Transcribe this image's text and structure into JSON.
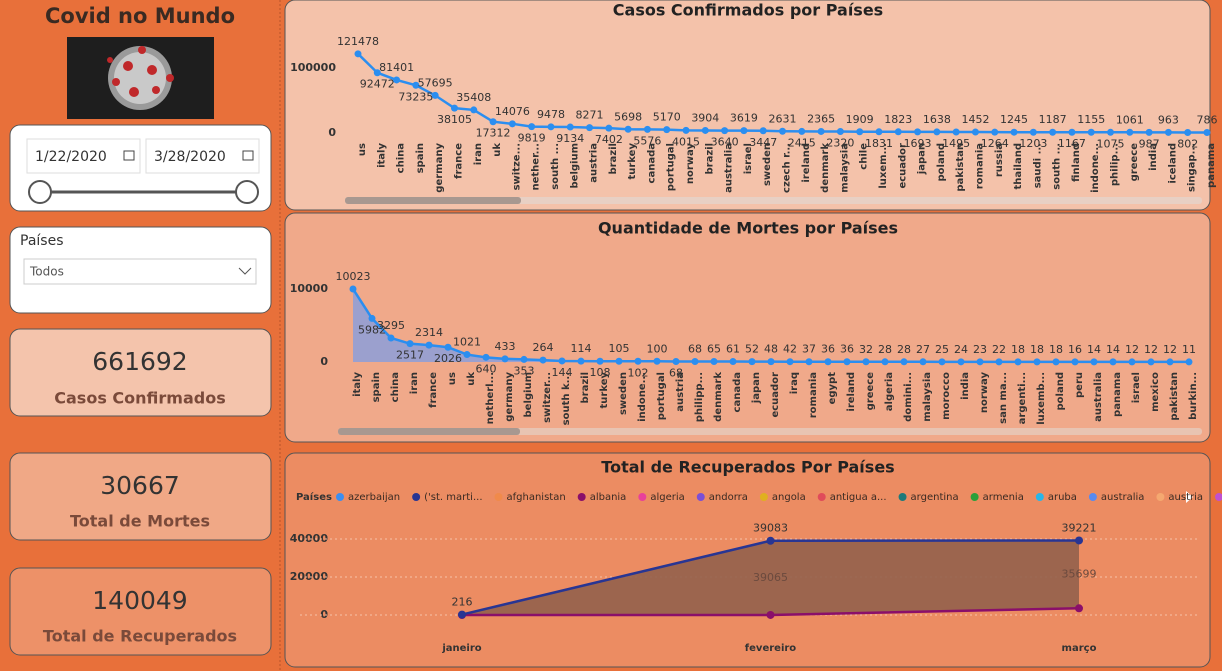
{
  "header": {
    "title": "Covid no Mundo"
  },
  "date_slicer": {
    "start": "1/22/2020",
    "end": "3/28/2020"
  },
  "filter": {
    "label": "Países",
    "selected": "Todos"
  },
  "kpis": [
    {
      "value": 661692,
      "label": "Casos Confirmados"
    },
    {
      "value": 30667,
      "label": "Total de Mortes"
    },
    {
      "value": 140049,
      "label": "Total de Recuperados"
    }
  ],
  "chart_data": [
    {
      "type": "line",
      "title": "Casos Confirmados por Países",
      "categories": [
        "us",
        "italy",
        "china",
        "spain",
        "germany",
        "france",
        "iran",
        "uk",
        "switze...",
        "nether...",
        "south ...",
        "belgium",
        "austria",
        "brazil",
        "turkey",
        "canada",
        "portugal",
        "norway",
        "brazil",
        "australia",
        "israel",
        "sweden",
        "czech r...",
        "ireland",
        "denmark",
        "malaysia",
        "chile",
        "luxem...",
        "ecuador",
        "japan",
        "poland",
        "pakistan",
        "romania",
        "russia",
        "thailand",
        "saudi ...",
        "south ...",
        "finland",
        "indone...",
        "philip...",
        "greece",
        "india",
        "iceland",
        "singap...",
        "panama"
      ],
      "values": [
        121478,
        92472,
        81401,
        73235,
        57695,
        38105,
        35408,
        17312,
        14076,
        9819,
        9478,
        9134,
        8271,
        7402,
        5698,
        5576,
        5170,
        4015,
        3904,
        3640,
        3619,
        3447,
        2631,
        2415,
        2365,
        2320,
        1909,
        1831,
        1823,
        1693,
        1638,
        1495,
        1452,
        1264,
        1245,
        1203,
        1187,
        1167,
        1155,
        1075,
        1061,
        987,
        963,
        802,
        786
      ],
      "color": "#2b8ef0",
      "ylim": [
        0,
        135000
      ],
      "yticks": [
        0,
        100000
      ]
    },
    {
      "type": "area",
      "title": "Quantidade de Mortes por Países",
      "categories": [
        "italy",
        "spain",
        "china",
        "iran",
        "france",
        "us",
        "uk",
        "netherl...",
        "germany",
        "belgium",
        "switzer...",
        "south k...",
        "brazil",
        "turkey",
        "sweden",
        "indone...",
        "portugal",
        "austria",
        "philipp...",
        "denmark",
        "canada",
        "japan",
        "ecuador",
        "iraq",
        "romania",
        "egypt",
        "ireland",
        "greece",
        "algeria",
        "domini...",
        "malaysia",
        "morocco",
        "india",
        "norway",
        "san ma...",
        "argenti...",
        "luxemb...",
        "poland",
        "peru",
        "australia",
        "panama",
        "israel",
        "mexico",
        "pakistan",
        "burkin..."
      ],
      "values": [
        10023,
        5982,
        3295,
        2517,
        2314,
        2026,
        1021,
        640,
        433,
        353,
        264,
        144,
        114,
        108,
        105,
        102,
        100,
        68,
        68,
        65,
        61,
        52,
        48,
        42,
        37,
        36,
        36,
        32,
        28,
        28,
        27,
        25,
        24,
        23,
        22,
        18,
        18,
        18,
        16,
        14,
        14,
        12,
        12,
        12,
        11
      ],
      "color": "#2b8ef0",
      "area_color": "#8c9fd9",
      "ylim": [
        0,
        14000
      ],
      "yticks": [
        0,
        10000
      ]
    },
    {
      "type": "stacked_area",
      "title": "Total de Recuperados Por Países",
      "legend_title": "Países",
      "legend": [
        {
          "name": "azerbaijan",
          "color": "#3b8ef0"
        },
        {
          "name": "('st. marti...",
          "color": "#283593"
        },
        {
          "name": "afghanistan",
          "color": "#f08a4b"
        },
        {
          "name": "albania",
          "color": "#8a0f6a"
        },
        {
          "name": "algeria",
          "color": "#e8409a"
        },
        {
          "name": "andorra",
          "color": "#7b4fd6"
        },
        {
          "name": "angola",
          "color": "#e0b020"
        },
        {
          "name": "antigua a...",
          "color": "#e04b5a"
        },
        {
          "name": "argentina",
          "color": "#1e7a7a"
        },
        {
          "name": "armenia",
          "color": "#2aa03a"
        },
        {
          "name": "aruba",
          "color": "#29b6e8"
        },
        {
          "name": "australia",
          "color": "#5a8af0"
        },
        {
          "name": "austria",
          "color": "#f5a870"
        },
        {
          "name": "azerbaijan",
          "color": "#c050d0"
        }
      ],
      "categories": [
        "janeiro",
        "fevereiro",
        "março"
      ],
      "series": [
        {
          "name": "albania",
          "values": [
            0,
            18,
            3522
          ]
        },
        {
          "name": "('st. marti...",
          "values": [
            216,
            39065,
            35699
          ]
        }
      ],
      "totals": [
        216,
        39083,
        39221
      ],
      "area_color": "#94604c",
      "ylim": [
        -5000,
        50000
      ],
      "yticks": [
        0,
        20000,
        40000
      ],
      "grid": true
    }
  ]
}
